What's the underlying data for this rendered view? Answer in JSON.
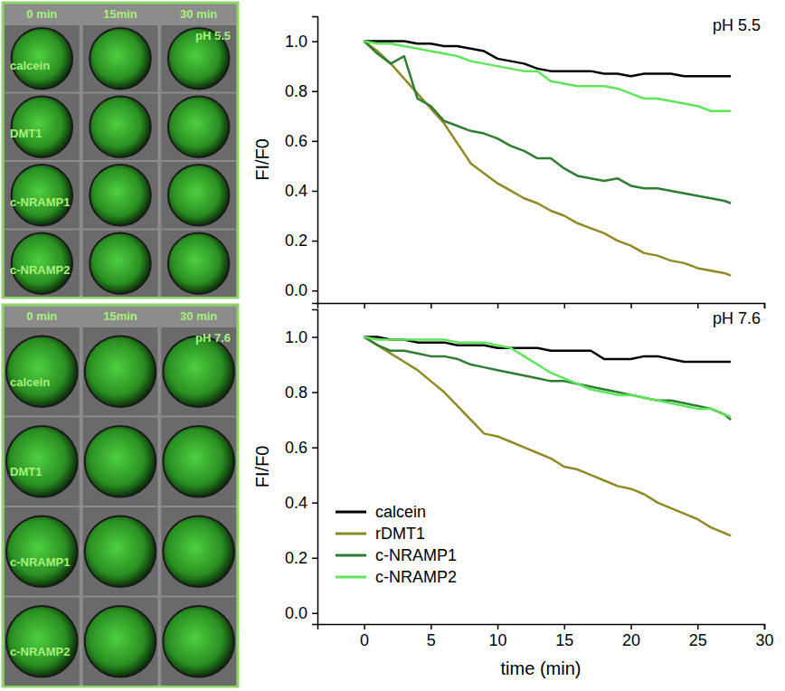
{
  "image_panels": [
    {
      "time_labels": [
        "0 min",
        "15min",
        "30 min"
      ],
      "ph_label": "pH 5.5",
      "rows": [
        "calcein",
        "DMT1",
        "c-NRAMP1",
        "c-NRAMP2"
      ]
    },
    {
      "time_labels": [
        "0 min",
        "15min",
        "30 min"
      ],
      "ph_label": "pH 7.6",
      "rows": [
        "calcein",
        "DMT1",
        "c-NRAMP1",
        "c-NRAMP2"
      ]
    }
  ],
  "chart_data": [
    {
      "type": "line",
      "title": "pH 5.5",
      "y_label": "FI/F0",
      "x": [
        0,
        1,
        2,
        3,
        4,
        5,
        6,
        7,
        8,
        9,
        10,
        11,
        12,
        13,
        14,
        15,
        16,
        17,
        18,
        19,
        20,
        21,
        22,
        23,
        24,
        25,
        26,
        27,
        27.5
      ],
      "xlim": [
        -3.5,
        30
      ],
      "xticks": [
        0,
        5,
        10,
        15,
        20,
        25,
        30
      ],
      "ylim": [
        -0.05,
        1.1
      ],
      "yticks": [
        {
          "value": 0,
          "label": "0.0"
        },
        {
          "value": 0.2,
          "label": "0.2"
        },
        {
          "value": 0.4,
          "label": "0.4"
        },
        {
          "value": 0.6,
          "label": "0.6"
        },
        {
          "value": 0.8,
          "label": "0.8"
        },
        {
          "value": 1,
          "label": "1.0"
        }
      ],
      "tick_labels": "y",
      "series": [
        {
          "color": "#000000",
          "values": [
            1.0,
            1.0,
            1.0,
            1.0,
            0.99,
            0.99,
            0.98,
            0.98,
            0.97,
            0.96,
            0.93,
            0.92,
            0.91,
            0.89,
            0.88,
            0.88,
            0.88,
            0.88,
            0.87,
            0.87,
            0.86,
            0.87,
            0.87,
            0.87,
            0.86,
            0.86,
            0.86,
            0.86,
            0.86
          ]
        },
        {
          "color": "#8f8a24",
          "values": [
            1.0,
            0.96,
            0.91,
            0.85,
            0.79,
            0.73,
            0.67,
            0.59,
            0.51,
            0.47,
            0.43,
            0.4,
            0.37,
            0.35,
            0.32,
            0.3,
            0.27,
            0.25,
            0.23,
            0.2,
            0.18,
            0.15,
            0.14,
            0.12,
            0.11,
            0.09,
            0.08,
            0.07,
            0.06
          ]
        },
        {
          "color": "#2e7d32",
          "values": [
            1.0,
            0.95,
            0.91,
            0.94,
            0.77,
            0.74,
            0.68,
            0.66,
            0.64,
            0.63,
            0.61,
            0.58,
            0.56,
            0.53,
            0.53,
            0.49,
            0.46,
            0.45,
            0.44,
            0.45,
            0.42,
            0.41,
            0.41,
            0.4,
            0.39,
            0.38,
            0.37,
            0.36,
            0.35
          ]
        },
        {
          "color": "#5ee65a",
          "values": [
            1.0,
            0.99,
            0.99,
            0.98,
            0.97,
            0.96,
            0.95,
            0.94,
            0.92,
            0.91,
            0.9,
            0.89,
            0.88,
            0.88,
            0.84,
            0.83,
            0.82,
            0.82,
            0.82,
            0.81,
            0.79,
            0.77,
            0.77,
            0.76,
            0.75,
            0.74,
            0.72,
            0.72,
            0.72
          ]
        }
      ]
    },
    {
      "type": "line",
      "title": "pH 7.6",
      "x_label": "time (min)",
      "y_label": "FI/F0",
      "x": [
        0,
        1,
        2,
        3,
        4,
        5,
        6,
        7,
        8,
        9,
        10,
        11,
        12,
        13,
        14,
        15,
        16,
        17,
        18,
        19,
        20,
        21,
        22,
        23,
        24,
        25,
        26,
        27,
        27.5
      ],
      "xlim": [
        -3.5,
        30
      ],
      "xticks": [
        0,
        5,
        10,
        15,
        20,
        25,
        30
      ],
      "ylim": [
        -0.04,
        1.1
      ],
      "yticks": [
        {
          "value": 0,
          "label": "0.0"
        },
        {
          "value": 0.2,
          "label": "0.2"
        },
        {
          "value": 0.4,
          "label": "0.4"
        },
        {
          "value": 0.6,
          "label": "0.6"
        },
        {
          "value": 0.8,
          "label": "0.8"
        },
        {
          "value": 1,
          "label": "1.0"
        }
      ],
      "legend": "lower left",
      "series": [
        {
          "name": "calcein",
          "color": "#000000",
          "values": [
            1.0,
            1.0,
            0.99,
            0.99,
            0.98,
            0.98,
            0.98,
            0.97,
            0.97,
            0.97,
            0.96,
            0.96,
            0.96,
            0.96,
            0.95,
            0.95,
            0.95,
            0.95,
            0.92,
            0.92,
            0.92,
            0.93,
            0.93,
            0.92,
            0.91,
            0.91,
            0.91,
            0.91,
            0.91
          ]
        },
        {
          "name": "rDMT1",
          "color": "#8f8a24",
          "values": [
            1.0,
            0.97,
            0.94,
            0.91,
            0.88,
            0.84,
            0.8,
            0.75,
            0.7,
            0.65,
            0.64,
            0.62,
            0.6,
            0.58,
            0.56,
            0.53,
            0.52,
            0.5,
            0.48,
            0.46,
            0.45,
            0.43,
            0.4,
            0.38,
            0.36,
            0.34,
            0.31,
            0.29,
            0.28
          ]
        },
        {
          "name": "c-NRAMP1",
          "color": "#2e7d32",
          "values": [
            1.0,
            0.97,
            0.95,
            0.95,
            0.94,
            0.93,
            0.93,
            0.92,
            0.9,
            0.89,
            0.88,
            0.87,
            0.86,
            0.85,
            0.84,
            0.84,
            0.83,
            0.82,
            0.81,
            0.8,
            0.79,
            0.78,
            0.77,
            0.77,
            0.76,
            0.75,
            0.74,
            0.72,
            0.7
          ]
        },
        {
          "name": "c-NRAMP2",
          "color": "#5ee65a",
          "values": [
            1.0,
            0.99,
            0.99,
            0.99,
            0.99,
            0.99,
            0.99,
            0.98,
            0.98,
            0.98,
            0.97,
            0.96,
            0.93,
            0.9,
            0.87,
            0.85,
            0.83,
            0.81,
            0.8,
            0.79,
            0.79,
            0.78,
            0.77,
            0.76,
            0.75,
            0.74,
            0.74,
            0.72,
            0.71
          ]
        }
      ]
    }
  ]
}
